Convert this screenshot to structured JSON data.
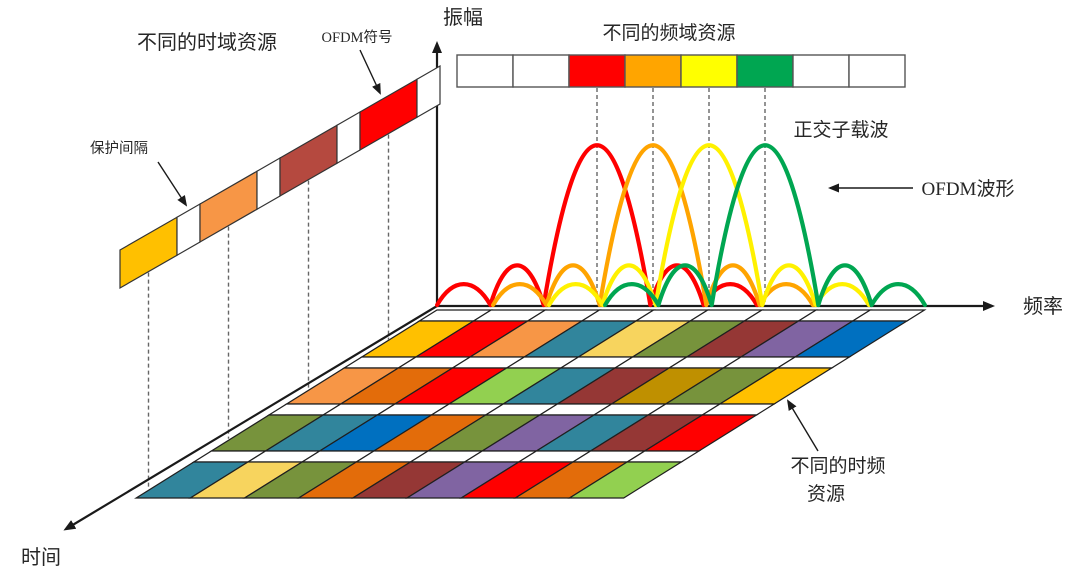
{
  "labels": {
    "amplitude_axis": "振幅",
    "frequency_axis": "频率",
    "time_axis": "时间",
    "time_domain_resources": "不同的时域资源",
    "ofdm_symbol": "OFDM符号",
    "guard_interval": "保护间隔",
    "frequency_domain_resources": "不同的频域资源",
    "orthogonal_subcarriers": "正交子载波",
    "ofdm_waveform": "OFDM波形",
    "time_frequency_resources_line1": "不同的时频",
    "time_frequency_resources_line2": "资源"
  },
  "palette": {
    "white": "#FFFFFF",
    "gold": "#FFC000",
    "red": "#FF0000",
    "sandy": "#F79646",
    "brick": "#B5493F",
    "orange": "#FFA500",
    "yellow": "#FFFF00",
    "green": "#00A651",
    "teal": "#31859C",
    "khaki": "#F7D45E",
    "olive": "#77933C",
    "brown": "#953735",
    "purple": "#8064A2",
    "blue": "#0070C0",
    "dkorange": "#E36C0A",
    "ygreen": "#92D050",
    "dkgold": "#BF9000",
    "wave_red": "#FF0000",
    "wave_orange": "#FFA400",
    "wave_yellow": "#FFF100",
    "wave_green": "#00A651",
    "axis": "#1A1A1A",
    "dash": "#666666",
    "cell_stroke": "#1F1F1F"
  },
  "frequency_strip": {
    "cells": [
      "white",
      "white",
      "red",
      "orange",
      "yellow",
      "green",
      "white",
      "white"
    ]
  },
  "time_strip": {
    "cells": [
      "gold",
      "white",
      "sandy",
      "white",
      "brick",
      "white",
      "red",
      "white"
    ]
  },
  "subcarriers": {
    "colors": [
      "wave_red",
      "wave_orange",
      "wave_yellow",
      "wave_green"
    ]
  },
  "grid": {
    "separator": "white",
    "rows": [
      [
        "gold",
        "red",
        "sandy",
        "teal",
        "khaki",
        "olive",
        "brown",
        "purple",
        "blue"
      ],
      [
        "sandy",
        "dkorange",
        "red",
        "ygreen",
        "teal",
        "brown",
        "dkgold",
        "olive",
        "gold"
      ],
      [
        "olive",
        "teal",
        "blue",
        "dkorange",
        "olive",
        "purple",
        "teal",
        "brown",
        "red"
      ],
      [
        "teal",
        "khaki",
        "olive",
        "dkorange",
        "brown",
        "purple",
        "red",
        "dkorange",
        "ygreen"
      ]
    ]
  }
}
